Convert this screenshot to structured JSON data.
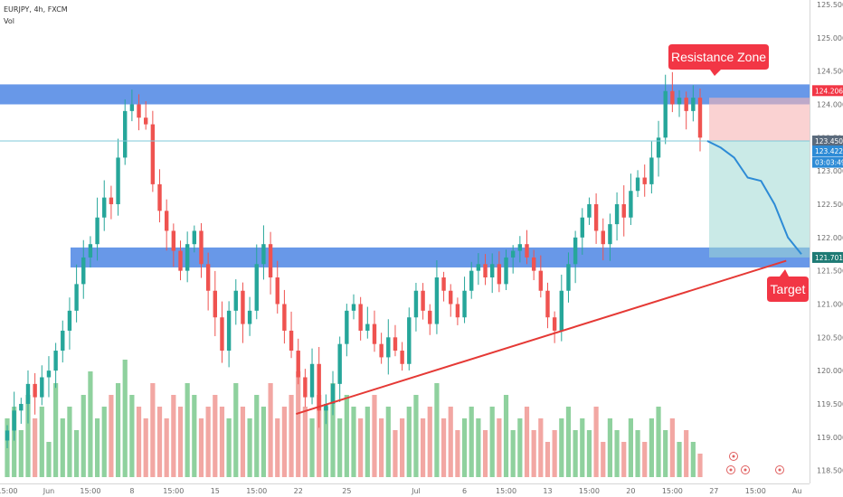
{
  "header": {
    "symbol": "EURJPY, 4h, FXCM",
    "vol_label": "Vol"
  },
  "annotations": {
    "resistance_label": "Resistance Zone",
    "target_label": "Target"
  },
  "colors": {
    "zone": "#5b8fe6",
    "up": "#26a69a",
    "down": "#ef5350",
    "vol_up": "#8fd19e",
    "vol_down": "#f2a7a3",
    "callout": "#f23645",
    "trend": "#e53935",
    "projection": "#2d8bd6",
    "price_line": "#7fc8da"
  },
  "chart_data": {
    "type": "candlestick",
    "title": "",
    "ylim": [
      118.4,
      125.5
    ],
    "y_ticks": [
      125.5,
      125.0,
      124.5,
      124.0,
      123.5,
      123.0,
      122.5,
      122.0,
      121.5,
      121.0,
      120.5,
      120.0,
      119.5,
      119.0,
      118.5
    ],
    "y_tick_labels": [
      "125.500",
      "125.000",
      "124.500",
      "124.000",
      "123.500",
      "123.000",
      "122.500",
      "122.000",
      "121.500",
      "121.000",
      "120.500",
      "120.000",
      "119.500",
      "119.000",
      "118.500"
    ],
    "x_ticks": [
      {
        "label": "15:00",
        "i": 0
      },
      {
        "label": "Jun",
        "i": 6
      },
      {
        "label": "15:00",
        "i": 12
      },
      {
        "label": "8",
        "i": 18
      },
      {
        "label": "15:00",
        "i": 24
      },
      {
        "label": "15",
        "i": 30
      },
      {
        "label": "15:00",
        "i": 36
      },
      {
        "label": "22",
        "i": 42
      },
      {
        "label": "25",
        "i": 49
      },
      {
        "label": "Jul",
        "i": 59
      },
      {
        "label": "6",
        "i": 66
      },
      {
        "label": "15:00",
        "i": 72
      },
      {
        "label": "13",
        "i": 78
      },
      {
        "label": "15:00",
        "i": 84
      },
      {
        "label": "20",
        "i": 90
      },
      {
        "label": "15:00",
        "i": 96
      },
      {
        "label": "27",
        "i": 102
      },
      {
        "label": "15:00",
        "i": 108
      },
      {
        "label": "Au",
        "i": 114
      }
    ],
    "price_series": [
      119.1,
      119.4,
      119.5,
      119.8,
      119.6,
      119.9,
      120.0,
      120.3,
      120.6,
      120.9,
      121.3,
      121.7,
      121.9,
      122.3,
      122.6,
      122.5,
      123.2,
      123.9,
      124.0,
      123.8,
      123.7,
      122.8,
      122.4,
      122.1,
      121.8,
      121.5,
      121.9,
      122.1,
      121.6,
      121.2,
      120.8,
      120.3,
      120.9,
      121.2,
      120.7,
      120.9,
      121.6,
      121.9,
      121.4,
      121.0,
      120.6,
      120.3,
      119.9,
      119.6,
      120.1,
      119.4,
      119.5,
      119.8,
      120.4,
      120.9,
      121.0,
      120.6,
      120.7,
      120.4,
      120.2,
      120.5,
      120.3,
      120.1,
      120.8,
      121.2,
      120.9,
      120.7,
      121.4,
      121.2,
      121.0,
      120.8,
      121.2,
      121.5,
      121.6,
      121.4,
      121.6,
      121.3,
      121.7,
      121.8,
      121.9,
      121.7,
      121.5,
      121.2,
      120.8,
      120.6,
      121.2,
      121.6,
      122.0,
      122.3,
      122.5,
      122.1,
      121.9,
      122.2,
      122.5,
      122.3,
      122.7,
      122.9,
      122.8,
      123.2,
      123.5,
      124.2,
      124.0,
      124.1,
      123.9,
      124.1,
      123.5
    ],
    "ohlc_note": "",
    "volume_series": [
      0.5,
      0.6,
      0.4,
      0.7,
      0.5,
      0.6,
      0.3,
      0.8,
      0.5,
      0.6,
      0.4,
      0.7,
      0.9,
      0.5,
      0.6,
      0.7,
      0.8,
      1.0,
      0.7,
      0.6,
      0.5,
      0.8,
      0.6,
      0.5,
      0.7,
      0.6,
      0.8,
      0.7,
      0.5,
      0.6,
      0.7,
      0.6,
      0.5,
      0.8,
      0.6,
      0.5,
      0.7,
      0.6,
      0.8,
      0.5,
      0.6,
      0.7,
      0.9,
      0.6,
      0.5,
      0.7,
      0.6,
      0.8,
      0.5,
      0.7,
      0.6,
      0.5,
      0.6,
      0.7,
      0.5,
      0.6,
      0.4,
      0.5,
      0.6,
      0.7,
      0.5,
      0.6,
      0.8,
      0.5,
      0.6,
      0.4,
      0.5,
      0.6,
      0.5,
      0.4,
      0.6,
      0.5,
      0.7,
      0.4,
      0.5,
      0.6,
      0.4,
      0.5,
      0.3,
      0.4,
      0.5,
      0.6,
      0.4,
      0.5,
      0.4,
      0.6,
      0.3,
      0.5,
      0.4,
      0.3,
      0.5,
      0.4,
      0.3,
      0.5,
      0.6,
      0.4,
      0.5,
      0.3,
      0.4,
      0.3,
      0.2
    ],
    "resistance_zone": [
      124.0,
      124.3
    ],
    "support_zone": [
      121.55,
      121.85
    ],
    "trendline": {
      "from_i": 43,
      "from_price": 119.35,
      "to_i": 114,
      "to_price": 121.65
    },
    "position": {
      "entry": 123.45,
      "stop": 124.1,
      "target": 121.7
    },
    "projection": [
      123.45,
      123.35,
      123.2,
      122.9,
      122.85,
      122.5,
      122.0,
      121.75
    ],
    "price_labels": [
      {
        "text": "124.206",
        "price": 124.206,
        "color": "#f23645"
      },
      {
        "text": "123.450",
        "price": 123.45,
        "color": "#5b6b7d"
      },
      {
        "text": "123.422",
        "price": 123.3,
        "color": "#2d8bd6"
      },
      {
        "text": "03:03:49",
        "price": 123.13,
        "color": "#2d8bd6"
      },
      {
        "text": "121.701",
        "price": 121.7,
        "color": "#1e7a74"
      }
    ]
  }
}
